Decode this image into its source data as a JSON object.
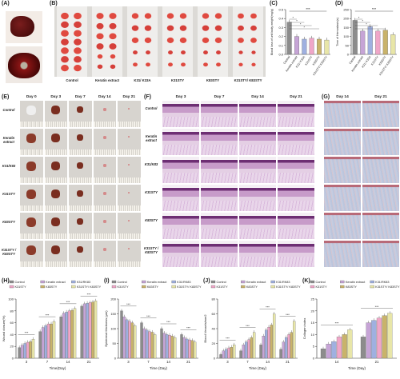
{
  "panels": {
    "A": "(A)",
    "B": "(B)",
    "C": "(C)",
    "D": "(D)",
    "E": "(E)",
    "F": "(F)",
    "G": "(G)",
    "H": "(H)",
    "I": "(I)",
    "J": "(J)",
    "K": "(K)"
  },
  "groups": [
    "Control",
    "Keratin extract",
    "K31/ K33A",
    "K31STY",
    "K83STY",
    "K31STY/ K83STY"
  ],
  "b_labels": [
    "Control",
    "Keratin extract",
    "K31/ K33A",
    "K31STY",
    "K83STY",
    "K31STY/ K83STY"
  ],
  "e_days": [
    "Day 0",
    "Day 3",
    "Day 7",
    "Day 14",
    "Day 21"
  ],
  "f_days": [
    "Day 3",
    "Day 7",
    "Day 14",
    "Day 21"
  ],
  "g_days": [
    "Day 14",
    "Day 21"
  ],
  "row_labels": [
    "Control",
    "Keratin extract",
    "K31/K83",
    "K31STY",
    "K83STY",
    "K31STY / K83STY"
  ],
  "legend_labels": [
    "Control",
    "Keratin extract",
    "K31/RK83",
    "K31STY",
    "K83STY",
    "K31STY/ K83STY"
  ],
  "series_colors": [
    "#8c8c8c",
    "#c6a4d6",
    "#9fb0e0",
    "#f0a6c8",
    "#c9b36a",
    "#e8e6a8"
  ],
  "sig": "***",
  "chart_data": [
    {
      "id": "C",
      "type": "bar",
      "categories": [
        "Control",
        "Keratin extract",
        "K31/ K33A",
        "K31STY",
        "K83STY",
        "K31STY/ K83STY"
      ],
      "values": [
        0.36,
        0.2,
        0.17,
        0.18,
        0.17,
        0.16
      ],
      "ylabel": "Blood loss of unit body weight(mg/g)",
      "ylim": [
        0,
        0.5
      ],
      "yticks": [
        "0.0",
        "0.1",
        "0.2",
        "0.3",
        "0.4",
        "0.5"
      ]
    },
    {
      "id": "D",
      "type": "bar",
      "categories": [
        "Control",
        "Keratin extract",
        "K31/ K33A",
        "K31STY",
        "K83STY",
        "K31STY/ K83STY"
      ],
      "values": [
        190,
        130,
        155,
        130,
        135,
        110
      ],
      "ylabel": "Time of Hemostasis(s)",
      "ylim": [
        0,
        250
      ],
      "yticks": [
        "0",
        "50",
        "100",
        "150",
        "200",
        "250"
      ]
    },
    {
      "id": "H",
      "type": "bar",
      "categories": [
        "3",
        "7",
        "14",
        "21"
      ],
      "xlabel": "Time(Day)",
      "ylabel": "Wound closure(%)",
      "ylim": [
        0,
        100
      ],
      "yticks": [
        "0",
        "20",
        "40",
        "60",
        "80",
        "100"
      ],
      "series": [
        {
          "name": "Control",
          "values": [
            18,
            45,
            70,
            88
          ]
        },
        {
          "name": "Keratin extract",
          "values": [
            22,
            52,
            76,
            92
          ]
        },
        {
          "name": "K31/RK83",
          "values": [
            25,
            55,
            78,
            93
          ]
        },
        {
          "name": "K31STY",
          "values": [
            27,
            58,
            80,
            94
          ]
        },
        {
          "name": "K83STY",
          "values": [
            28,
            58,
            81,
            95
          ]
        },
        {
          "name": "K31STY/ K83STY",
          "values": [
            32,
            62,
            84,
            97
          ]
        }
      ]
    },
    {
      "id": "I",
      "type": "bar",
      "categories": [
        "3",
        "7",
        "14",
        "21"
      ],
      "xlabel": "Time (Day)",
      "ylabel": "Epidermal thickness (μm)",
      "ylim": [
        0,
        200
      ],
      "yticks": [
        "0",
        "50",
        "100",
        "150",
        "200"
      ],
      "series": [
        {
          "name": "Control",
          "values": [
            160,
            120,
            100,
            80
          ]
        },
        {
          "name": "Keratin extract",
          "values": [
            140,
            100,
            85,
            70
          ]
        },
        {
          "name": "K31/RK83",
          "values": [
            130,
            95,
            80,
            65
          ]
        },
        {
          "name": "K31STY",
          "values": [
            125,
            90,
            78,
            62
          ]
        },
        {
          "name": "K83STY",
          "values": [
            120,
            88,
            75,
            60
          ]
        },
        {
          "name": "K31STY/ K83STY",
          "values": [
            110,
            80,
            70,
            55
          ]
        }
      ]
    },
    {
      "id": "J",
      "type": "bar",
      "categories": [
        "3",
        "7",
        "14",
        "21"
      ],
      "xlabel": "Time (Day)",
      "ylabel": "Blood Vessels/mm2",
      "ylim": [
        0,
        80
      ],
      "yticks": [
        "0",
        "20",
        "40",
        "60",
        "80"
      ],
      "series": [
        {
          "name": "Control",
          "values": [
            5,
            10,
            18,
            12
          ]
        },
        {
          "name": "Keratin extract",
          "values": [
            10,
            18,
            30,
            22
          ]
        },
        {
          "name": "K31/RK83",
          "values": [
            12,
            22,
            38,
            28
          ]
        },
        {
          "name": "K31STY",
          "values": [
            14,
            25,
            42,
            32
          ]
        },
        {
          "name": "K83STY",
          "values": [
            15,
            28,
            45,
            35
          ]
        },
        {
          "name": "K31STY/ K83STY",
          "values": [
            18,
            35,
            60,
            50
          ]
        }
      ]
    },
    {
      "id": "K",
      "type": "bar",
      "categories": [
        "14",
        "21"
      ],
      "xlabel": "Time (Day)",
      "ylabel": "Collagen index",
      "ylim": [
        0,
        25
      ],
      "yticks": [
        "0",
        "5",
        "10",
        "15",
        "20",
        "25"
      ],
      "series": [
        {
          "name": "Control",
          "values": [
            4,
            9
          ]
        },
        {
          "name": "Keratin extract",
          "values": [
            6,
            15
          ]
        },
        {
          "name": "K31/RK83",
          "values": [
            7,
            16
          ]
        },
        {
          "name": "K31STY",
          "values": [
            9,
            17
          ]
        },
        {
          "name": "K83STY",
          "values": [
            10,
            18
          ]
        },
        {
          "name": "K31STY/ K83STY",
          "values": [
            12,
            19
          ]
        }
      ]
    }
  ]
}
